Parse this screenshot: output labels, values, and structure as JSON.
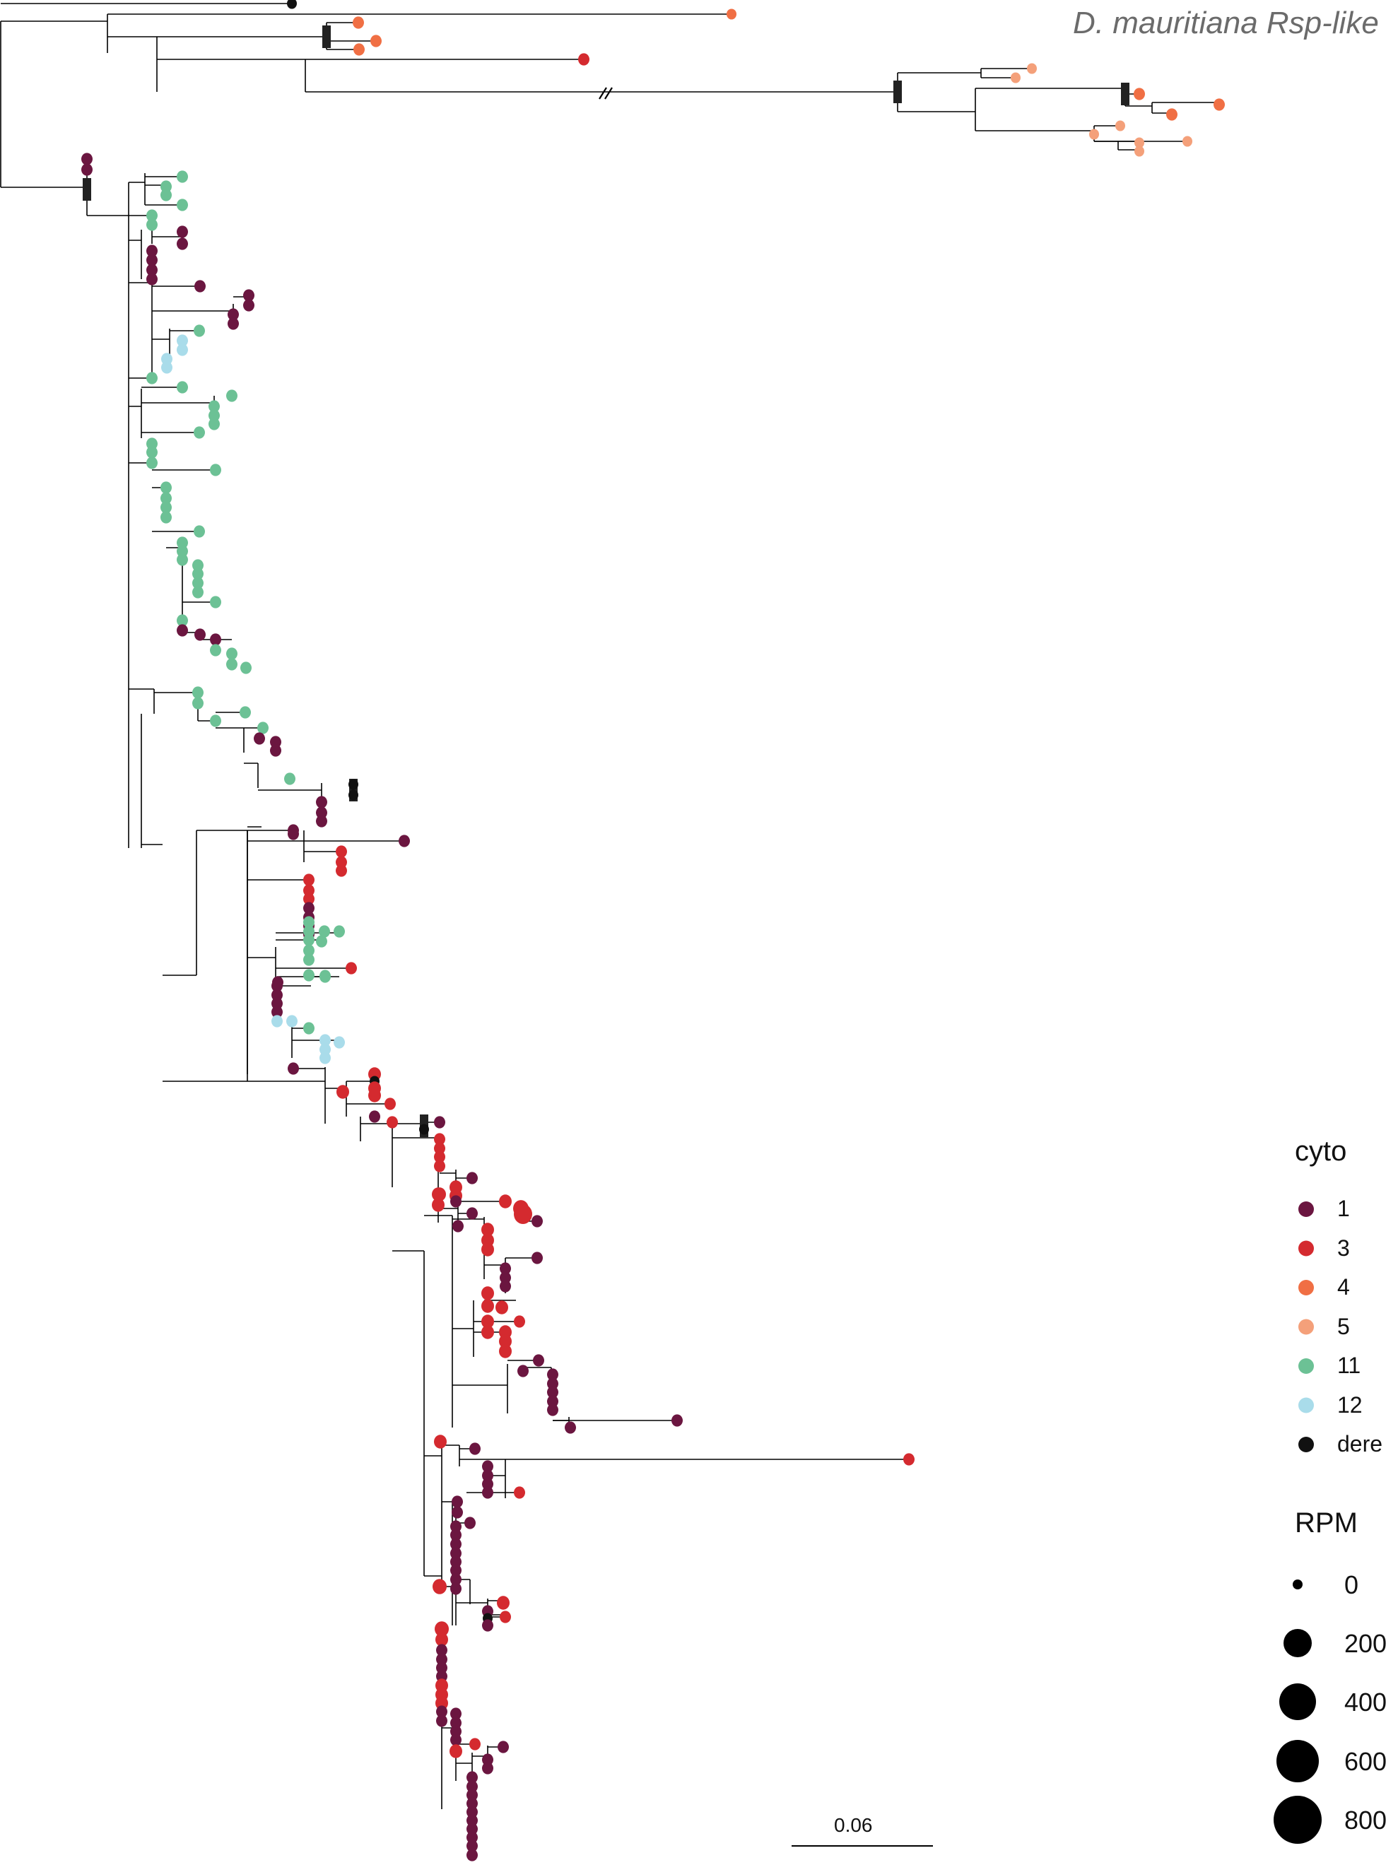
{
  "chart_data": {
    "type": "tree",
    "clade_label": "D. mauritiana Rsp-like",
    "legend": {
      "color_title": "cyto",
      "color_entries": [
        {
          "label": "1",
          "color": "#6b1640"
        },
        {
          "label": "3",
          "color": "#d42a2f"
        },
        {
          "label": "4",
          "color": "#f06f44"
        },
        {
          "label": "5",
          "color": "#f4a07a"
        },
        {
          "label": "11",
          "color": "#6cc195"
        },
        {
          "label": "12",
          "color": "#a9dcea"
        },
        {
          "label": "dere",
          "color": "#111111"
        }
      ],
      "size_title": "RPM",
      "size_entries": [
        "0",
        "200",
        "400",
        "600",
        "800"
      ]
    },
    "scale_bar": {
      "label": "0.06"
    }
  }
}
